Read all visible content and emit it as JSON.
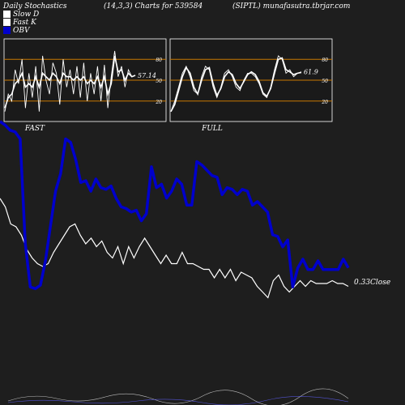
{
  "header": {
    "left": "Daily Stochastics",
    "middle": "(14,3,3) Charts for 539584",
    "right": "(SIPTL) munafasutra.tbrjar.com"
  },
  "legend": [
    {
      "label": "Slow  D",
      "color": "#ffffff"
    },
    {
      "label": "Fast K",
      "color": "#ffffff"
    },
    {
      "label": "OBV",
      "color": "#0000cc"
    }
  ],
  "colors": {
    "background": "#1e1e1e",
    "obv": "#0000cc",
    "price": "#ffffff",
    "level_line": "#c87800",
    "panel": "#1a1a1a"
  },
  "chart_data": [
    {
      "type": "line",
      "title": "FAST",
      "ylim": [
        0,
        100
      ],
      "yticks": [
        20,
        50,
        80
      ],
      "level_lines": [
        20,
        50,
        80
      ],
      "last_value_label": "57.14",
      "series": [
        {
          "name": "Fast K",
          "values": [
            5,
            30,
            20,
            65,
            45,
            80,
            10,
            60,
            25,
            70,
            5,
            85,
            50,
            30,
            75,
            60,
            15,
            80,
            40,
            65,
            30,
            70,
            25,
            75,
            20,
            60,
            30,
            70,
            20,
            72,
            10,
            55,
            92,
            55,
            70,
            40,
            65,
            55,
            57
          ]
        },
        {
          "name": "Slow  D",
          "values": [
            10,
            25,
            30,
            45,
            50,
            60,
            40,
            45,
            40,
            55,
            40,
            60,
            55,
            50,
            60,
            55,
            45,
            60,
            55,
            55,
            50,
            55,
            50,
            55,
            45,
            50,
            45,
            55,
            40,
            55,
            30,
            45,
            85,
            62,
            65,
            50,
            60,
            55,
            57
          ]
        }
      ]
    },
    {
      "type": "line",
      "title": "FULL",
      "ylim": [
        0,
        100
      ],
      "yticks": [
        20,
        50,
        80
      ],
      "level_lines": [
        20,
        50,
        80
      ],
      "last_value_label": "61.9",
      "series": [
        {
          "name": "Fast K",
          "values": [
            5,
            20,
            40,
            60,
            70,
            55,
            35,
            30,
            55,
            70,
            65,
            40,
            25,
            40,
            60,
            65,
            55,
            40,
            35,
            50,
            60,
            60,
            55,
            45,
            30,
            25,
            40,
            65,
            85,
            80,
            60,
            65,
            55,
            60,
            62
          ]
        },
        {
          "name": "Slow  D",
          "values": [
            5,
            15,
            35,
            55,
            68,
            60,
            40,
            30,
            50,
            65,
            68,
            45,
            28,
            38,
            55,
            62,
            58,
            45,
            38,
            48,
            58,
            62,
            58,
            48,
            32,
            27,
            38,
            60,
            80,
            82,
            65,
            62,
            58,
            60,
            61
          ]
        }
      ]
    },
    {
      "type": "line",
      "last_value_label": "0.33",
      "last_value_caption": "Close",
      "series": [
        {
          "name": "OBV",
          "values": [
            100,
            98,
            95,
            94,
            90,
            30,
            5,
            4,
            6,
            20,
            40,
            60,
            70,
            90,
            88,
            78,
            65,
            66,
            60,
            67,
            62,
            61,
            63,
            56,
            51,
            50,
            48,
            49,
            43,
            47,
            74,
            62,
            64,
            56,
            60,
            67,
            64,
            52,
            52,
            77,
            75,
            72,
            69,
            68,
            58,
            62,
            61,
            58,
            61,
            60,
            52,
            54,
            51,
            48,
            35,
            34,
            28,
            32,
            5,
            16,
            21,
            15,
            15,
            20,
            15,
            15,
            15,
            15,
            21,
            16
          ]
        },
        {
          "name": "Price",
          "values": [
            30,
            27,
            21,
            20,
            17,
            12,
            9,
            7,
            6,
            7,
            11,
            14,
            17,
            20,
            21,
            17,
            14,
            16,
            13,
            15,
            11,
            9,
            13,
            7,
            13,
            9,
            13,
            16,
            13,
            10,
            7,
            10,
            7,
            7,
            11,
            7,
            7,
            6,
            5,
            5,
            2,
            5,
            2,
            5,
            1,
            4,
            3,
            2,
            -1,
            -3,
            -5,
            1,
            3,
            -1,
            -3,
            -1,
            1,
            -1,
            1,
            0,
            0,
            0,
            1,
            0,
            0,
            -1
          ]
        }
      ]
    }
  ]
}
